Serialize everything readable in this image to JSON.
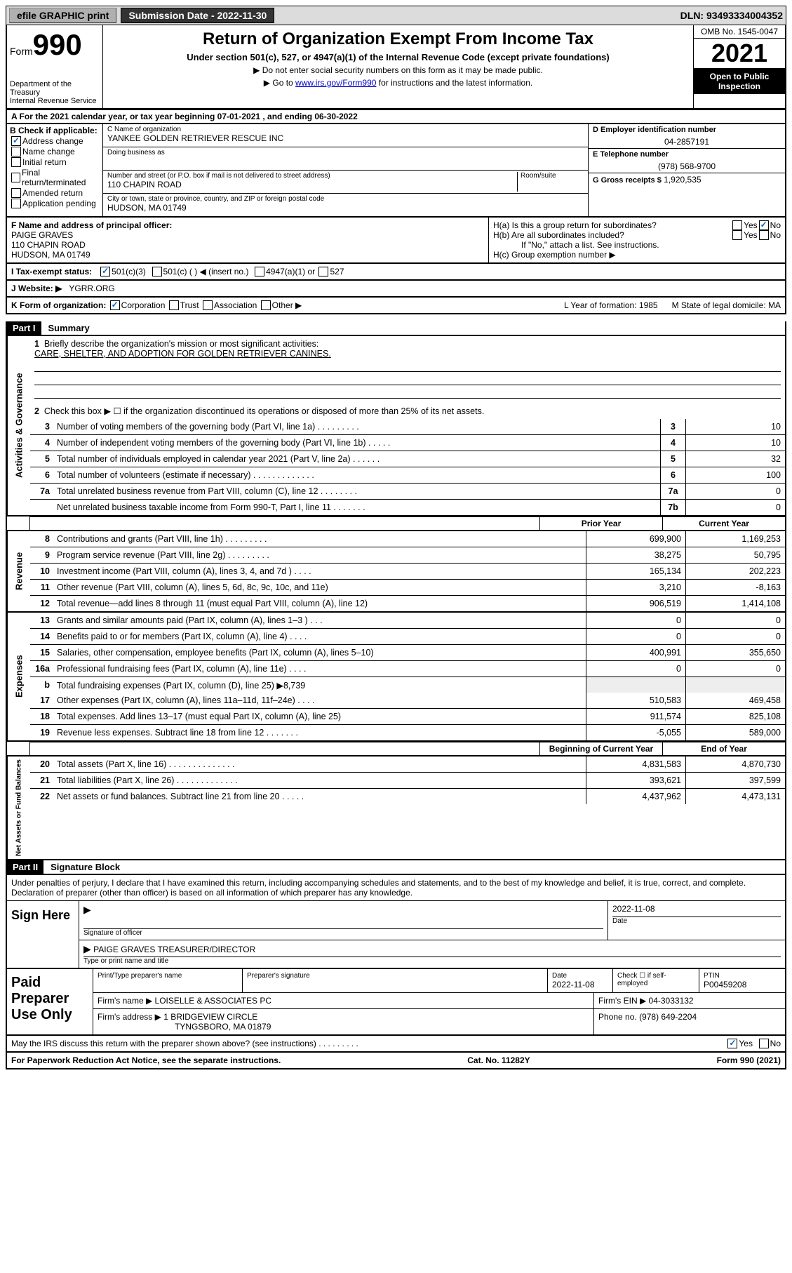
{
  "topbar": {
    "efile": "efile GRAPHIC print",
    "submission_label": "Submission Date - 2022-11-30",
    "dln": "DLN: 93493334004352"
  },
  "header": {
    "form_word": "Form",
    "form_num": "990",
    "dept": "Department of the Treasury",
    "irs": "Internal Revenue Service",
    "title": "Return of Organization Exempt From Income Tax",
    "sub": "Under section 501(c), 527, or 4947(a)(1) of the Internal Revenue Code (except private foundations)",
    "note1": "▶ Do not enter social security numbers on this form as it may be made public.",
    "note2_pre": "▶ Go to ",
    "note2_link": "www.irs.gov/Form990",
    "note2_post": " for instructions and the latest information.",
    "omb": "OMB No. 1545-0047",
    "year": "2021",
    "otp1": "Open to Public",
    "otp2": "Inspection"
  },
  "period": "A For the 2021 calendar year, or tax year beginning 07-01-2021   , and ending 06-30-2022",
  "boxB": {
    "label": "B Check if applicable:",
    "items": [
      "Address change",
      "Name change",
      "Initial return",
      "Final return/terminated",
      "Amended return",
      "Application pending"
    ],
    "checked_idx": 0
  },
  "boxC": {
    "label": "C Name of organization",
    "name": "YANKEE GOLDEN RETRIEVER RESCUE INC",
    "dba_label": "Doing business as",
    "street_label": "Number and street (or P.O. box if mail is not delivered to street address)",
    "room_label": "Room/suite",
    "street": "110 CHAPIN ROAD",
    "city_label": "City or town, state or province, country, and ZIP or foreign postal code",
    "city": "HUDSON, MA  01749"
  },
  "boxD": {
    "label": "D Employer identification number",
    "val": "04-2857191"
  },
  "boxE": {
    "label": "E Telephone number",
    "val": "(978) 568-9700"
  },
  "boxG": {
    "label": "G Gross receipts $",
    "val": "1,920,535"
  },
  "boxF": {
    "label": "F  Name and address of principal officer:",
    "name": "PAIGE GRAVES",
    "addr1": "110 CHAPIN ROAD",
    "addr2": "HUDSON, MA  01749"
  },
  "boxH": {
    "ha": "H(a)  Is this a group return for subordinates?",
    "hb": "H(b)  Are all subordinates included?",
    "hb_note": "If \"No,\" attach a list. See instructions.",
    "hc": "H(c)  Group exemption number ▶",
    "yes": "Yes",
    "no": "No"
  },
  "taxI": {
    "label": "I     Tax-exempt status:",
    "opt1": "501(c)(3)",
    "opt2": "501(c) (  ) ◀ (insert no.)",
    "opt3": "4947(a)(1) or",
    "opt4": "527"
  },
  "webJ": {
    "label": "J    Website: ▶",
    "val": "YGRR.ORG"
  },
  "rowK": {
    "label": "K Form of organization:",
    "opts": [
      "Corporation",
      "Trust",
      "Association",
      "Other ▶"
    ],
    "L": "L Year of formation: 1985",
    "M": "M State of legal domicile: MA"
  },
  "part1": {
    "header": "Part I",
    "title": "Summary"
  },
  "summary_top": {
    "l1": "Briefly describe the organization's mission or most significant activities:",
    "l1_text": "CARE, SHELTER, AND ADOPTION FOR GOLDEN RETRIEVER CANINES.",
    "l2": "Check this box ▶ ☐  if the organization discontinued its operations or disposed of more than 25% of its net assets."
  },
  "governance_lines": [
    {
      "n": "3",
      "t": "Number of voting members of the governing body (Part VI, line 1a)  .   .   .   .   .   .   .   .   .",
      "b": "3",
      "v": "10"
    },
    {
      "n": "4",
      "t": "Number of independent voting members of the governing body (Part VI, line 1b)  .   .   .   .   .",
      "b": "4",
      "v": "10"
    },
    {
      "n": "5",
      "t": "Total number of individuals employed in calendar year 2021 (Part V, line 2a)  .   .   .   .   .   .",
      "b": "5",
      "v": "32"
    },
    {
      "n": "6",
      "t": "Total number of volunteers (estimate if necessary)  .   .   .   .   .   .   .   .   .   .   .   .   .",
      "b": "6",
      "v": "100"
    },
    {
      "n": "7a",
      "t": "Total unrelated business revenue from Part VIII, column (C), line 12  .   .   .   .   .   .   .   .",
      "b": "7a",
      "v": "0"
    },
    {
      "n": "",
      "t": "Net unrelated business taxable income from Form 990-T, Part I, line 11  .   .   .   .   .   .   .",
      "b": "7b",
      "v": "0"
    }
  ],
  "col_headers": {
    "py": "Prior Year",
    "cy": "Current Year"
  },
  "revenue_lines": [
    {
      "n": "8",
      "t": "Contributions and grants (Part VIII, line 1h)  .   .   .   .   .   .   .   .   .",
      "py": "699,900",
      "cy": "1,169,253"
    },
    {
      "n": "9",
      "t": "Program service revenue (Part VIII, line 2g)  .   .   .   .   .   .   .   .   .",
      "py": "38,275",
      "cy": "50,795"
    },
    {
      "n": "10",
      "t": "Investment income (Part VIII, column (A), lines 3, 4, and 7d )  .   .   .   .",
      "py": "165,134",
      "cy": "202,223"
    },
    {
      "n": "11",
      "t": "Other revenue (Part VIII, column (A), lines 5, 6d, 8c, 9c, 10c, and 11e)",
      "py": "3,210",
      "cy": "-8,163"
    },
    {
      "n": "12",
      "t": "Total revenue—add lines 8 through 11 (must equal Part VIII, column (A), line 12)",
      "py": "906,519",
      "cy": "1,414,108"
    }
  ],
  "expense_lines": [
    {
      "n": "13",
      "t": "Grants and similar amounts paid (Part IX, column (A), lines 1–3 )  .   .   .",
      "py": "0",
      "cy": "0"
    },
    {
      "n": "14",
      "t": "Benefits paid to or for members (Part IX, column (A), line 4)  .   .   .   .",
      "py": "0",
      "cy": "0"
    },
    {
      "n": "15",
      "t": "Salaries, other compensation, employee benefits (Part IX, column (A), lines 5–10)",
      "py": "400,991",
      "cy": "355,650"
    },
    {
      "n": "16a",
      "t": "Professional fundraising fees (Part IX, column (A), line 11e)  .   .   .   .",
      "py": "0",
      "cy": "0"
    }
  ],
  "expense_b": {
    "n": "b",
    "t_pre": "Total fundraising expenses (Part IX, column (D), line 25) ▶",
    "t_val": "8,739"
  },
  "expense_lines2": [
    {
      "n": "17",
      "t": "Other expenses (Part IX, column (A), lines 11a–11d, 11f–24e)  .   .   .   .",
      "py": "510,583",
      "cy": "469,458"
    },
    {
      "n": "18",
      "t": "Total expenses. Add lines 13–17 (must equal Part IX, column (A), line 25)",
      "py": "911,574",
      "cy": "825,108"
    },
    {
      "n": "19",
      "t": "Revenue less expenses. Subtract line 18 from line 12  .   .   .   .   .   .   .",
      "py": "-5,055",
      "cy": "589,000"
    }
  ],
  "col_headers2": {
    "py": "Beginning of Current Year",
    "cy": "End of Year"
  },
  "netassets_lines": [
    {
      "n": "20",
      "t": "Total assets (Part X, line 16)  .   .   .   .   .   .   .   .   .   .   .   .   .   .",
      "py": "4,831,583",
      "cy": "4,870,730"
    },
    {
      "n": "21",
      "t": "Total liabilities (Part X, line 26)  .   .   .   .   .   .   .   .   .   .   .   .   .",
      "py": "393,621",
      "cy": "397,599"
    },
    {
      "n": "22",
      "t": "Net assets or fund balances. Subtract line 21 from line 20  .   .   .   .   .",
      "py": "4,437,962",
      "cy": "4,473,131"
    }
  ],
  "part2": {
    "header": "Part II",
    "title": "Signature Block"
  },
  "sig": {
    "disclaimer": "Under penalties of perjury, I declare that I have examined this return, including accompanying schedules and statements, and to the best of my knowledge and belief, it is true, correct, and complete. Declaration of preparer (other than officer) is based on all information of which preparer has any knowledge.",
    "sign_here": "Sign Here",
    "sig_officer": "Signature of officer",
    "date": "Date",
    "date_val": "2022-11-08",
    "name_title": "PAIGE GRAVES  TREASURER/DIRECTOR",
    "type_label": "Type or print name and title"
  },
  "prep": {
    "label": "Paid Preparer Use Only",
    "h_name": "Print/Type preparer's name",
    "h_sig": "Preparer's signature",
    "h_date": "Date",
    "h_date_val": "2022-11-08",
    "h_check": "Check ☐ if self-employed",
    "h_ptin": "PTIN",
    "ptin_val": "P00459208",
    "firm_name_label": "Firm's name     ▶",
    "firm_name": "LOISELLE & ASSOCIATES PC",
    "firm_ein_label": "Firm's EIN ▶",
    "firm_ein": "04-3033132",
    "firm_addr_label": "Firm's address ▶",
    "firm_addr1": "1 BRIDGEVIEW CIRCLE",
    "firm_addr2": "TYNGSBORO, MA  01879",
    "phone_label": "Phone no.",
    "phone": "(978) 649-2204"
  },
  "may": {
    "text": "May the IRS discuss this return with the preparer shown above? (see instructions)  .   .   .   .   .   .   .   .   .",
    "yes": "Yes",
    "no": "No"
  },
  "footer": {
    "left": "For Paperwork Reduction Act Notice, see the separate instructions.",
    "mid": "Cat. No. 11282Y",
    "right": "Form 990 (2021)"
  },
  "vlabels": {
    "gov": "Activities & Governance",
    "rev": "Revenue",
    "exp": "Expenses",
    "net": "Net Assets or Fund Balances"
  }
}
